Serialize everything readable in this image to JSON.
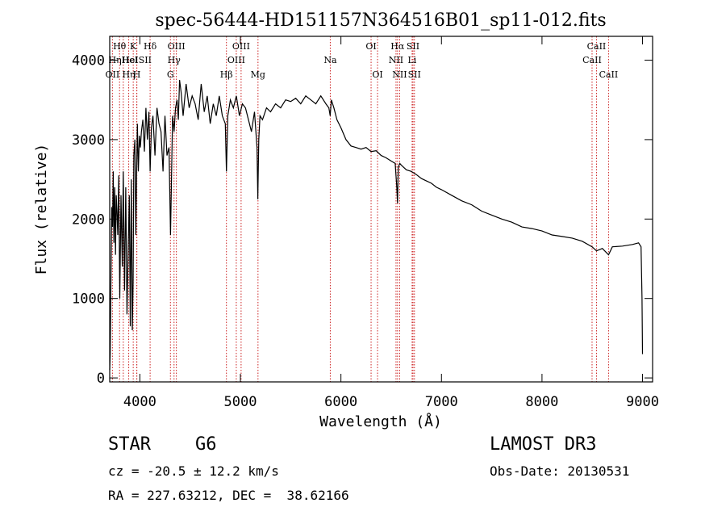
{
  "chart_data": {
    "type": "line",
    "title": "spec-56444-HD151157N364516B01_sp11-012.fits",
    "xlabel": "Wavelength (Å)",
    "ylabel": "Flux (relative)",
    "xlim": [
      3700,
      9100
    ],
    "ylim": [
      -50,
      4300
    ],
    "x_ticks": [
      4000,
      5000,
      6000,
      7000,
      8000,
      9000
    ],
    "y_ticks": [
      0,
      1000,
      2000,
      3000,
      4000
    ],
    "grid": false,
    "series": [
      {
        "name": "flux",
        "x": [
          3700,
          3705,
          3712,
          3720,
          3728,
          3735,
          3742,
          3750,
          3758,
          3765,
          3772,
          3780,
          3790,
          3800,
          3812,
          3825,
          3835,
          3848,
          3860,
          3872,
          3885,
          3895,
          3905,
          3915,
          3925,
          3933,
          3940,
          3950,
          3960,
          3968,
          3975,
          3985,
          3995,
          4005,
          4015,
          4030,
          4045,
          4060,
          4075,
          4090,
          4102,
          4115,
          4130,
          4150,
          4170,
          4190,
          4210,
          4230,
          4250,
          4270,
          4290,
          4305,
          4315,
          4325,
          4340,
          4355,
          4370,
          4383,
          4395,
          4410,
          4430,
          4460,
          4490,
          4520,
          4550,
          4580,
          4610,
          4640,
          4670,
          4700,
          4730,
          4760,
          4790,
          4820,
          4850,
          4861,
          4875,
          4900,
          4930,
          4960,
          4990,
          5020,
          5050,
          5080,
          5110,
          5140,
          5165,
          5173,
          5183,
          5195,
          5220,
          5260,
          5300,
          5350,
          5400,
          5450,
          5500,
          5550,
          5600,
          5650,
          5700,
          5750,
          5800,
          5850,
          5880,
          5893,
          5905,
          5930,
          5960,
          6000,
          6050,
          6100,
          6150,
          6200,
          6250,
          6300,
          6350,
          6400,
          6450,
          6500,
          6540,
          6556,
          6563,
          6570,
          6585,
          6600,
          6650,
          6700,
          6750,
          6800,
          6850,
          6900,
          6950,
          7000,
          7100,
          7200,
          7300,
          7400,
          7500,
          7600,
          7700,
          7800,
          7900,
          8000,
          8100,
          8200,
          8300,
          8400,
          8498,
          8542,
          8600,
          8662,
          8700,
          8800,
          8900,
          8960,
          8985,
          8995,
          9000
        ],
        "y": [
          100,
          300,
          1200,
          2150,
          1900,
          2600,
          1700,
          2400,
          1550,
          2300,
          2100,
          1800,
          2550,
          1000,
          2300,
          1400,
          2600,
          1100,
          2400,
          800,
          1700,
          2300,
          650,
          2500,
          600,
          1200,
          2800,
          3000,
          1800,
          2600,
          3200,
          2600,
          3050,
          2900,
          3100,
          3250,
          2850,
          3400,
          3000,
          3350,
          2600,
          3150,
          3300,
          2800,
          3400,
          3200,
          3100,
          2600,
          3300,
          2800,
          2900,
          1800,
          2500,
          3300,
          3100,
          3400,
          3500,
          3250,
          3750,
          3600,
          3300,
          3700,
          3400,
          3550,
          3450,
          3250,
          3700,
          3350,
          3550,
          3200,
          3450,
          3300,
          3550,
          3300,
          3200,
          2600,
          3300,
          3500,
          3400,
          3550,
          3300,
          3450,
          3400,
          3250,
          3100,
          3350,
          2900,
          2250,
          3000,
          3300,
          3250,
          3400,
          3350,
          3450,
          3400,
          3500,
          3480,
          3520,
          3450,
          3550,
          3500,
          3450,
          3550,
          3450,
          3400,
          3300,
          3500,
          3400,
          3250,
          3150,
          3000,
          2920,
          2900,
          2880,
          2900,
          2850,
          2860,
          2800,
          2770,
          2730,
          2700,
          2400,
          2200,
          2650,
          2700,
          2680,
          2620,
          2600,
          2560,
          2510,
          2480,
          2450,
          2400,
          2370,
          2300,
          2230,
          2180,
          2100,
          2050,
          2000,
          1960,
          1900,
          1880,
          1850,
          1800,
          1780,
          1760,
          1720,
          1650,
          1600,
          1630,
          1550,
          1650,
          1660,
          1680,
          1700,
          1650,
          1000,
          300
        ]
      }
    ],
    "lines": [
      {
        "label": "OII",
        "x": 3727,
        "row": 2
      },
      {
        "label": "Hθ",
        "x": 3798,
        "row": 0
      },
      {
        "label": "HηHeI",
        "x": 3835,
        "row": 1
      },
      {
        "label": "Hη",
        "x": 3889,
        "row": 2
      },
      {
        "label": "K",
        "x": 3934,
        "row": 0
      },
      {
        "label": "HeISII",
        "x": 3970,
        "row": 1
      },
      {
        "label": "H",
        "x": 3969,
        "row": 2
      },
      {
        "label": "Hδ",
        "x": 4102,
        "row": 0
      },
      {
        "label": "OIII",
        "x": 4363,
        "row": 0
      },
      {
        "label": "Hγ",
        "x": 4340,
        "row": 1
      },
      {
        "label": "G",
        "x": 4304,
        "row": 2
      },
      {
        "label": "Hβ",
        "x": 4861,
        "row": 2
      },
      {
        "label": "OIII",
        "x": 4959,
        "row": 1
      },
      {
        "label": "OIII",
        "x": 5007,
        "row": 0
      },
      {
        "label": "Mg",
        "x": 5175,
        "row": 2
      },
      {
        "label": "Na",
        "x": 5894,
        "row": 1
      },
      {
        "label": "OI",
        "x": 6300,
        "row": 0
      },
      {
        "label": "OI",
        "x": 6364,
        "row": 2
      },
      {
        "label": "Hα",
        "x": 6563,
        "row": 0
      },
      {
        "label": "NII",
        "x": 6548,
        "row": 1
      },
      {
        "label": "NII",
        "x": 6584,
        "row": 2
      },
      {
        "label": "SII",
        "x": 6717,
        "row": 0
      },
      {
        "label": "Li",
        "x": 6708,
        "row": 1
      },
      {
        "label": "SII",
        "x": 6731,
        "row": 2
      },
      {
        "label": "CaII",
        "x": 8498,
        "row": 1
      },
      {
        "label": "CaII",
        "x": 8542,
        "row": 0
      },
      {
        "label": "CaII",
        "x": 8662,
        "row": 2
      }
    ]
  },
  "info": {
    "object_type": "STAR",
    "subclass": "G6",
    "survey": "LAMOST DR3",
    "cz": "cz = -20.5 ± 12.2 km/s",
    "obs_date": "Obs-Date: 20130531",
    "coords": "RA = 227.63212, DEC =  38.62166"
  },
  "colors": {
    "line_marker": "#cc2222",
    "spectrum": "#000000"
  }
}
